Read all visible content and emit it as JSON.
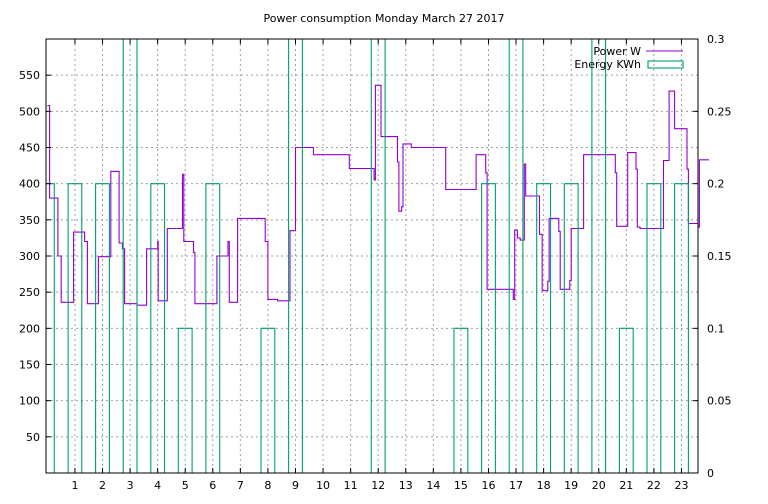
{
  "chart_data": {
    "type": "line",
    "title": "Power consumption Monday March 27 2017",
    "x": {
      "range": [
        -0.05,
        23.6
      ],
      "ticks": [
        1,
        2,
        3,
        4,
        5,
        6,
        7,
        8,
        9,
        10,
        11,
        12,
        13,
        14,
        15,
        16,
        17,
        18,
        19,
        20,
        21,
        22,
        23
      ],
      "grid": true
    },
    "y": {
      "label": "",
      "range": [
        0,
        600
      ],
      "ticks": [
        50,
        100,
        150,
        200,
        250,
        300,
        350,
        400,
        450,
        500,
        550
      ],
      "grid": true
    },
    "y2": {
      "label": "",
      "range": [
        0,
        0.3
      ],
      "ticks": [
        "0",
        "0.05",
        "0.1",
        "0.15",
        "0.2",
        "0.25",
        "0.3"
      ]
    },
    "legend": {
      "placement": "top-right"
    },
    "series": [
      {
        "name": "Power W",
        "axis": "y",
        "color": "#9400d3",
        "points": [
          [
            0.0,
            508
          ],
          [
            0.08,
            508
          ],
          [
            0.08,
            380
          ],
          [
            0.38,
            380
          ],
          [
            0.38,
            300
          ],
          [
            0.5,
            300
          ],
          [
            0.5,
            236
          ],
          [
            0.95,
            236
          ],
          [
            0.95,
            333
          ],
          [
            1.35,
            333
          ],
          [
            1.35,
            320
          ],
          [
            1.45,
            320
          ],
          [
            1.45,
            234
          ],
          [
            1.85,
            234
          ],
          [
            1.85,
            299
          ],
          [
            2.3,
            299
          ],
          [
            2.3,
            417
          ],
          [
            2.6,
            417
          ],
          [
            2.6,
            318
          ],
          [
            2.72,
            318
          ],
          [
            2.72,
            310
          ],
          [
            2.8,
            310
          ],
          [
            2.8,
            234
          ],
          [
            3.25,
            234
          ],
          [
            3.25,
            232
          ],
          [
            3.6,
            232
          ],
          [
            3.6,
            310
          ],
          [
            4.0,
            310
          ],
          [
            4.0,
            320
          ],
          [
            4.02,
            320
          ],
          [
            4.02,
            238
          ],
          [
            4.35,
            238
          ],
          [
            4.35,
            338
          ],
          [
            4.9,
            338
          ],
          [
            4.9,
            413
          ],
          [
            4.95,
            413
          ],
          [
            4.95,
            320
          ],
          [
            5.3,
            320
          ],
          [
            5.3,
            305
          ],
          [
            5.35,
            305
          ],
          [
            5.35,
            234
          ],
          [
            6.15,
            234
          ],
          [
            6.15,
            300
          ],
          [
            6.55,
            300
          ],
          [
            6.55,
            320
          ],
          [
            6.6,
            320
          ],
          [
            6.6,
            236
          ],
          [
            6.9,
            236
          ],
          [
            6.9,
            352
          ],
          [
            7.9,
            352
          ],
          [
            7.9,
            320
          ],
          [
            8.0,
            320
          ],
          [
            8.0,
            240
          ],
          [
            8.35,
            240
          ],
          [
            8.35,
            238
          ],
          [
            8.8,
            238
          ],
          [
            8.8,
            335
          ],
          [
            9.0,
            335
          ],
          [
            9.0,
            450
          ],
          [
            9.65,
            450
          ],
          [
            9.65,
            440
          ],
          [
            10.95,
            440
          ],
          [
            10.95,
            421
          ],
          [
            11.85,
            421
          ],
          [
            11.85,
            405
          ],
          [
            11.9,
            405
          ],
          [
            11.9,
            536
          ],
          [
            12.1,
            536
          ],
          [
            12.1,
            465
          ],
          [
            12.7,
            465
          ],
          [
            12.7,
            430
          ],
          [
            12.75,
            430
          ],
          [
            12.75,
            362
          ],
          [
            12.85,
            362
          ],
          [
            12.85,
            368
          ],
          [
            12.9,
            368
          ],
          [
            12.9,
            455
          ],
          [
            13.2,
            455
          ],
          [
            13.2,
            450
          ],
          [
            14.45,
            450
          ],
          [
            14.45,
            392
          ],
          [
            15.55,
            392
          ],
          [
            15.55,
            440
          ],
          [
            15.9,
            440
          ],
          [
            15.9,
            415
          ],
          [
            15.95,
            415
          ],
          [
            15.95,
            254
          ],
          [
            16.9,
            254
          ],
          [
            16.9,
            240
          ],
          [
            16.95,
            240
          ],
          [
            16.95,
            336
          ],
          [
            17.05,
            336
          ],
          [
            17.05,
            325
          ],
          [
            17.15,
            325
          ],
          [
            17.15,
            322
          ],
          [
            17.3,
            322
          ],
          [
            17.3,
            427
          ],
          [
            17.35,
            427
          ],
          [
            17.35,
            383
          ],
          [
            17.85,
            383
          ],
          [
            17.85,
            330
          ],
          [
            17.95,
            330
          ],
          [
            17.95,
            252
          ],
          [
            18.15,
            252
          ],
          [
            18.15,
            265
          ],
          [
            18.2,
            265
          ],
          [
            18.2,
            352
          ],
          [
            18.55,
            352
          ],
          [
            18.55,
            334
          ],
          [
            18.6,
            334
          ],
          [
            18.6,
            254
          ],
          [
            18.95,
            254
          ],
          [
            18.95,
            266
          ],
          [
            19.0,
            266
          ],
          [
            19.0,
            338
          ],
          [
            19.45,
            338
          ],
          [
            19.45,
            440
          ],
          [
            20.6,
            440
          ],
          [
            20.6,
            415
          ],
          [
            20.65,
            415
          ],
          [
            20.65,
            341
          ],
          [
            21.05,
            341
          ],
          [
            21.05,
            443
          ],
          [
            21.35,
            443
          ],
          [
            21.35,
            420
          ],
          [
            21.4,
            420
          ],
          [
            21.4,
            340
          ],
          [
            21.5,
            340
          ],
          [
            21.5,
            338
          ],
          [
            22.35,
            338
          ],
          [
            22.35,
            432
          ],
          [
            22.55,
            432
          ],
          [
            22.55,
            528
          ],
          [
            22.75,
            528
          ],
          [
            22.75,
            476
          ],
          [
            23.2,
            476
          ],
          [
            23.2,
            420
          ],
          [
            23.25,
            420
          ],
          [
            23.25,
            345
          ],
          [
            23.6,
            345
          ],
          [
            23.6,
            340
          ],
          [
            23.65,
            340
          ],
          [
            23.65,
            433
          ],
          [
            24.0,
            433
          ]
        ]
      },
      {
        "name": "Energy KWh",
        "axis": "y2",
        "color": "#009e73",
        "points": [
          [
            0.0,
            0.2
          ],
          [
            0.25,
            0.2
          ],
          [
            0.25,
            0
          ],
          [
            0.75,
            0
          ],
          [
            0.75,
            0.2
          ],
          [
            1.25,
            0.2
          ],
          [
            1.25,
            0
          ],
          [
            1.75,
            0
          ],
          [
            1.75,
            0.2
          ],
          [
            2.25,
            0.2
          ],
          [
            2.25,
            0
          ],
          [
            2.75,
            0
          ],
          [
            2.75,
            0.3
          ],
          [
            3.25,
            0.3
          ],
          [
            3.25,
            0
          ],
          [
            3.75,
            0
          ],
          [
            3.75,
            0.2
          ],
          [
            4.25,
            0.2
          ],
          [
            4.25,
            0
          ],
          [
            4.75,
            0
          ],
          [
            4.75,
            0.1
          ],
          [
            5.25,
            0.1
          ],
          [
            5.25,
            0
          ],
          [
            5.75,
            0
          ],
          [
            5.75,
            0.2
          ],
          [
            6.25,
            0.2
          ],
          [
            6.25,
            0
          ],
          [
            7.75,
            0
          ],
          [
            7.75,
            0.1
          ],
          [
            8.25,
            0.1
          ],
          [
            8.25,
            0
          ],
          [
            8.75,
            0
          ],
          [
            8.75,
            0.3
          ],
          [
            9.25,
            0.3
          ],
          [
            9.25,
            0
          ],
          [
            11.75,
            0
          ],
          [
            11.75,
            0.3
          ],
          [
            12.25,
            0.3
          ],
          [
            12.25,
            0
          ],
          [
            14.75,
            0
          ],
          [
            14.75,
            0.1
          ],
          [
            15.25,
            0.1
          ],
          [
            15.25,
            0
          ],
          [
            15.75,
            0
          ],
          [
            15.75,
            0.2
          ],
          [
            16.25,
            0.2
          ],
          [
            16.25,
            0
          ],
          [
            16.75,
            0
          ],
          [
            16.75,
            0.3
          ],
          [
            17.25,
            0.3
          ],
          [
            17.25,
            0
          ],
          [
            17.75,
            0
          ],
          [
            17.75,
            0.2
          ],
          [
            18.25,
            0.2
          ],
          [
            18.25,
            0
          ],
          [
            18.75,
            0
          ],
          [
            18.75,
            0.2
          ],
          [
            19.25,
            0.2
          ],
          [
            19.25,
            0
          ],
          [
            19.75,
            0
          ],
          [
            19.75,
            0.3
          ],
          [
            20.25,
            0.3
          ],
          [
            20.25,
            0
          ],
          [
            20.75,
            0
          ],
          [
            20.75,
            0.1
          ],
          [
            21.25,
            0.1
          ],
          [
            21.25,
            0
          ],
          [
            21.75,
            0
          ],
          [
            21.75,
            0.2
          ],
          [
            22.25,
            0.2
          ],
          [
            22.25,
            0
          ],
          [
            22.75,
            0
          ],
          [
            22.75,
            0.2
          ],
          [
            23.25,
            0.2
          ],
          [
            23.25,
            0
          ]
        ]
      }
    ]
  }
}
